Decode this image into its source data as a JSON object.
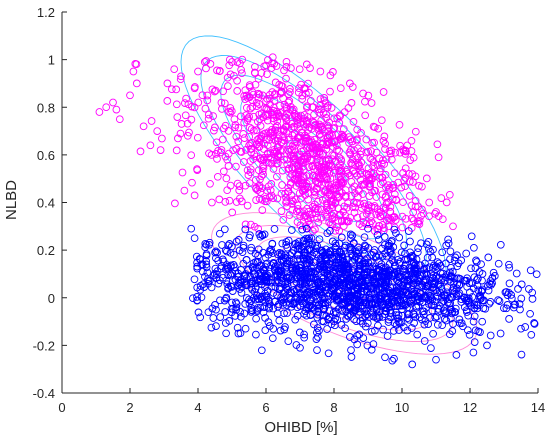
{
  "chart_data": {
    "type": "scatter",
    "title": "",
    "xlabel": "OHIBD [%]",
    "ylabel": "NLBD",
    "xlim": [
      0,
      14
    ],
    "ylim": [
      -0.4,
      1.2
    ],
    "xticks": [
      "0",
      "2",
      "4",
      "6",
      "8",
      "10",
      "12",
      "14"
    ],
    "yticks": [
      "-0.4",
      "-0.2",
      "0",
      "0.2",
      "0.4",
      "0.6",
      "0.8",
      "1",
      "1.2"
    ],
    "grid": false,
    "legend": "none",
    "colors": {
      "upper": "#ff00ff",
      "lower": "#0000ff",
      "contour_upper": "#40c0ff",
      "contour_lower": "#ff8ad8",
      "axis": "#262626"
    },
    "series": [
      {
        "marker": "open-circle",
        "color": "#ff00ff",
        "cluster": {
          "center": [
            7.4,
            0.55
          ],
          "spread_x": 1.8,
          "spread_y": 0.18,
          "tilt": -0.62,
          "y_min": 0.28,
          "x_range": [
            1.0,
            11.5
          ],
          "count": 1100
        },
        "points": [
          [
            1.1,
            0.78
          ],
          [
            1.3,
            0.8
          ],
          [
            1.5,
            0.82
          ],
          [
            1.6,
            0.79
          ],
          [
            1.7,
            0.75
          ],
          [
            2.0,
            0.85
          ],
          [
            2.1,
            0.95
          ],
          [
            2.2,
            0.9
          ],
          [
            2.4,
            0.72
          ],
          [
            2.6,
            0.64
          ],
          [
            2.8,
            0.7
          ],
          [
            2.9,
            0.62
          ],
          [
            3.1,
            0.9
          ],
          [
            3.3,
            0.96
          ],
          [
            3.5,
            0.93
          ],
          [
            3.6,
            0.45
          ],
          [
            3.7,
            0.68
          ],
          [
            3.9,
            0.43
          ],
          [
            4.0,
            0.95
          ],
          [
            4.2,
            0.99
          ],
          [
            4.4,
            0.6
          ],
          [
            5.3,
            1.0
          ],
          [
            5.9,
            0.85
          ],
          [
            6.2,
            1.01
          ],
          [
            6.6,
            0.97
          ],
          [
            7.2,
            0.98
          ],
          [
            7.6,
            0.95
          ],
          [
            8.2,
            0.88
          ],
          [
            9.3,
            0.71
          ],
          [
            9.7,
            0.58
          ],
          [
            10.2,
            0.52
          ],
          [
            10.5,
            0.47
          ],
          [
            10.8,
            0.4
          ],
          [
            11.0,
            0.36
          ],
          [
            11.2,
            0.33
          ],
          [
            11.5,
            0.3
          ]
        ]
      },
      {
        "marker": "open-circle",
        "color": "#0000ff",
        "cluster": {
          "center": [
            8.3,
            0.06
          ],
          "spread_x": 2.3,
          "spread_y": 0.1,
          "tilt": -0.07,
          "y_max": 0.29,
          "x_range": [
            3.8,
            14.0
          ],
          "count": 1700
        },
        "points": [
          [
            3.8,
            0.29
          ],
          [
            3.9,
            0.25
          ],
          [
            4.1,
            0.14
          ],
          [
            4.3,
            0.07
          ],
          [
            4.5,
            -0.03
          ],
          [
            4.8,
            -0.06
          ],
          [
            5.4,
            -0.13
          ],
          [
            6.2,
            -0.17
          ],
          [
            7.0,
            -0.21
          ],
          [
            7.5,
            -0.22
          ],
          [
            8.5,
            -0.22
          ],
          [
            9.5,
            -0.25
          ],
          [
            10.3,
            -0.28
          ],
          [
            11.0,
            -0.26
          ],
          [
            11.6,
            -0.24
          ],
          [
            12.1,
            -0.23
          ],
          [
            12.5,
            -0.2
          ],
          [
            12.9,
            -0.15
          ],
          [
            13.1,
            -0.03
          ],
          [
            13.3,
            -0.03
          ],
          [
            13.5,
            -0.13
          ],
          [
            13.9,
            -0.11
          ],
          [
            12.6,
            0.07
          ],
          [
            12.2,
            0.15
          ],
          [
            11.3,
            0.22
          ],
          [
            10.2,
            0.28
          ],
          [
            9.0,
            0.29
          ],
          [
            8.5,
            0.25
          ],
          [
            7.2,
            0.29
          ]
        ]
      }
    ],
    "contours": [
      {
        "center": [
          7.4,
          0.55
        ],
        "color": "#40c0ff",
        "half_extents": [
          [
            3.9,
            -0.44
          ],
          [
            0.0,
            0.33
          ]
        ],
        "levels": [
          1.0,
          0.85,
          0.7,
          0.55,
          0.42,
          0.3,
          0.2,
          0.12
        ]
      },
      {
        "center": [
          8.3,
          0.06
        ],
        "color": "#ff8ad8",
        "half_extents": [
          [
            3.9,
            -0.2
          ],
          [
            0.1,
            0.22
          ]
        ],
        "levels": [
          1.0,
          0.82,
          0.66,
          0.52,
          0.4,
          0.3,
          0.21,
          0.13
        ]
      }
    ]
  }
}
